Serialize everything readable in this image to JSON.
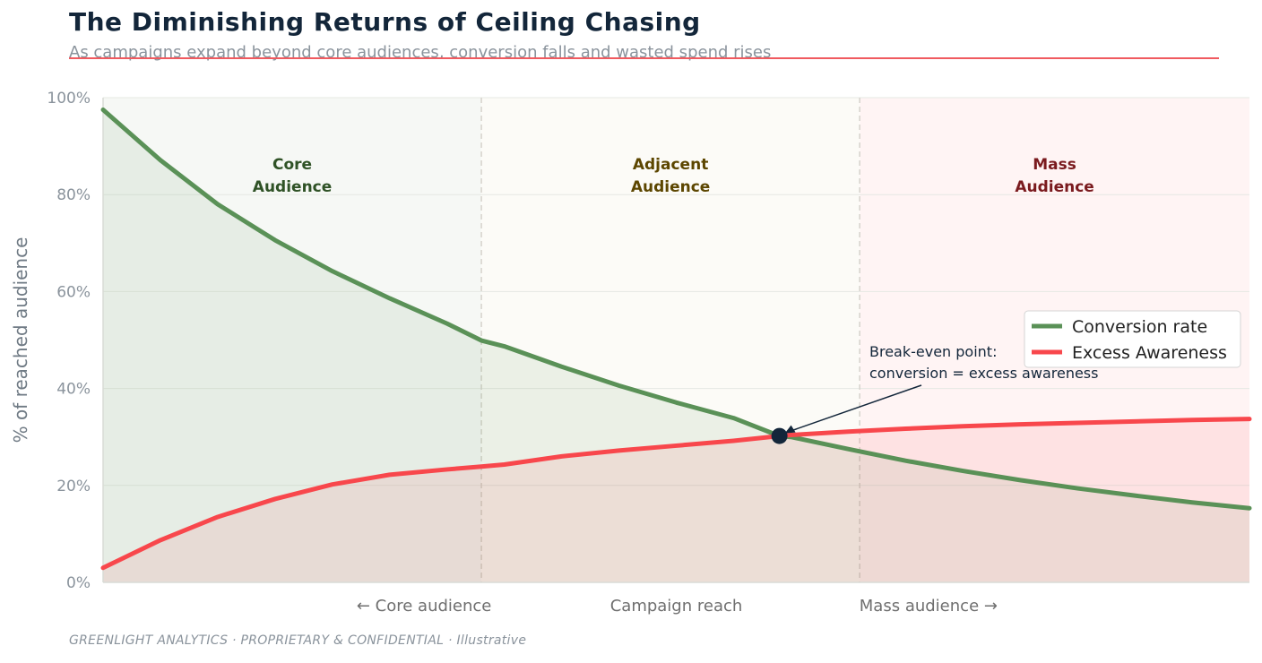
{
  "header": {
    "title": "The Diminishing Returns of Ceiling Chasing",
    "subtitle": "As campaigns expand beyond core audiences, conversion falls and wasted spend rises"
  },
  "footer": {
    "text": "GREENLIGHT ANALYTICS  ·  PROPRIETARY & CONFIDENTIAL  ·  Illustrative"
  },
  "chart_data": {
    "type": "line",
    "title": "The Diminishing Returns of Ceiling Chasing",
    "subtitle": "As campaigns expand beyond core audiences, conversion falls and wasted spend rises",
    "ylabel": "% of reached audience",
    "xlabel": "Campaign reach",
    "x_tick_labels": [
      {
        "x": 0.28,
        "label": "← Core audience"
      },
      {
        "x": 0.5,
        "label": "Campaign reach"
      },
      {
        "x": 0.72,
        "label": "Mass audience →"
      }
    ],
    "xlim": [
      0,
      1
    ],
    "ylim": [
      0,
      100
    ],
    "y_ticks": [
      0,
      20,
      40,
      60,
      80,
      100
    ],
    "y_tick_labels": [
      "0%",
      "20%",
      "40%",
      "60%",
      "80%",
      "100%"
    ],
    "grid": true,
    "legend_position": "right",
    "zones": [
      {
        "start": 0,
        "end": 0.33,
        "label": [
          "Core",
          "Audience"
        ],
        "fill": "#f6f8f5",
        "label_color": "#2f5226"
      },
      {
        "start": 0.33,
        "end": 0.66,
        "label": [
          "Adjacent",
          "Audience"
        ],
        "fill": "#fcfbf7",
        "label_color": "#5c4600"
      },
      {
        "start": 0.66,
        "end": 1,
        "label": [
          "Mass",
          "Audience"
        ],
        "fill": "#fff4f4",
        "label_color": "#7a1a1e"
      }
    ],
    "series": [
      {
        "name": "Conversion rate",
        "color": "#5a9157",
        "x": [
          0,
          0.05,
          0.1,
          0.15,
          0.2,
          0.25,
          0.3,
          0.33,
          0.35,
          0.4,
          0.45,
          0.5,
          0.55,
          0.59,
          0.6,
          0.65,
          0.7,
          0.75,
          0.8,
          0.85,
          0.9,
          0.95,
          1.0
        ],
        "values": [
          97.5,
          87.1,
          78.0,
          70.6,
          64.2,
          58.6,
          53.4,
          49.9,
          48.7,
          44.5,
          40.6,
          37.1,
          33.9,
          30.2,
          30.0,
          27.5,
          25.1,
          23.0,
          21.1,
          19.4,
          17.9,
          16.5,
          15.3
        ]
      },
      {
        "name": "Excess Awareness",
        "color": "#f8474c",
        "x": [
          0,
          0.05,
          0.1,
          0.15,
          0.2,
          0.25,
          0.3,
          0.33,
          0.35,
          0.4,
          0.45,
          0.5,
          0.55,
          0.59,
          0.6,
          0.65,
          0.7,
          0.75,
          0.8,
          0.85,
          0.9,
          0.95,
          1.0
        ],
        "values": [
          3.0,
          8.7,
          13.5,
          17.2,
          20.2,
          22.2,
          23.3,
          23.9,
          24.3,
          26.0,
          27.2,
          28.2,
          29.2,
          30.2,
          30.4,
          31.1,
          31.7,
          32.2,
          32.6,
          32.9,
          33.2,
          33.5,
          33.7
        ]
      }
    ],
    "annotations": [
      {
        "x": 0.59,
        "y": 30.2,
        "label": [
          "Break-even point:",
          "conversion = excess awareness"
        ]
      }
    ]
  }
}
